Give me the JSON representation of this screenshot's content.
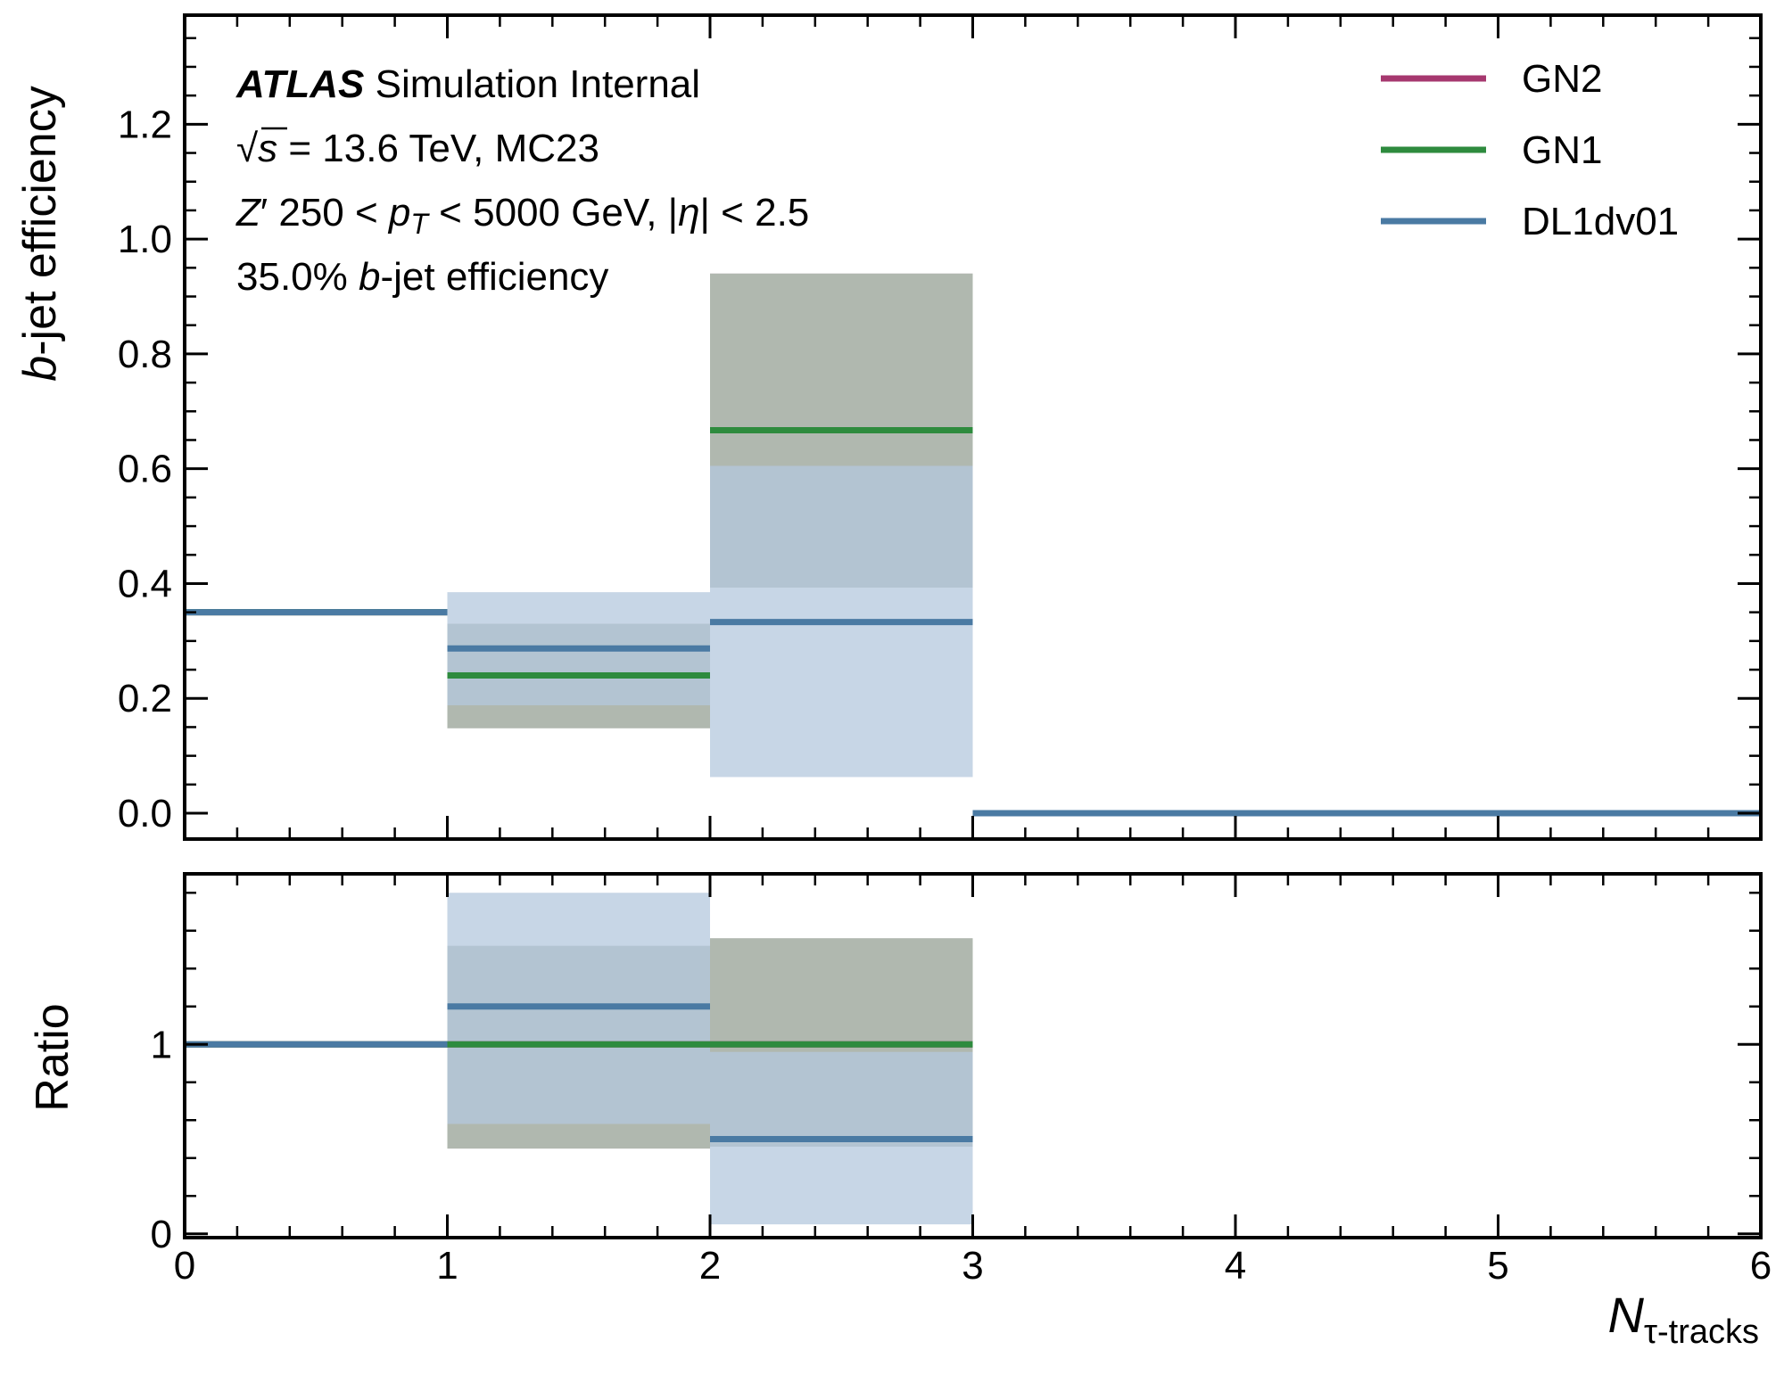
{
  "chart_data": {
    "type": "step",
    "x_edges": [
      0,
      1,
      2,
      3,
      4,
      5,
      6
    ],
    "xlim": [
      0,
      6
    ],
    "xticks": [
      "0",
      "1",
      "2",
      "3",
      "4",
      "5",
      "6"
    ],
    "xlabel_main": "N",
    "xlabel_sub": "τ-tracks",
    "top": {
      "ylabel_italic": "b",
      "ylabel_rest": "-jet efficiency",
      "ylim": [
        -0.045,
        1.39
      ],
      "yticks": [
        "0.0",
        "0.2",
        "0.4",
        "0.6",
        "0.8",
        "1.0",
        "1.2"
      ],
      "series": [
        {
          "name": "GN2",
          "color": "#a6386f",
          "values": [
            0.35,
            0.24,
            0.667,
            0,
            0,
            0
          ],
          "band_low": [
            0.35,
            0.148,
            0.393,
            0,
            0,
            0
          ],
          "band_high": [
            0.35,
            0.33,
            0.94,
            0,
            0,
            0
          ]
        },
        {
          "name": "GN1",
          "color": "#2e8b3e",
          "values": [
            0.35,
            0.24,
            0.667,
            0,
            0,
            0
          ],
          "band_low": [
            0.35,
            0.148,
            0.393,
            0,
            0,
            0
          ],
          "band_high": [
            0.35,
            0.33,
            0.94,
            0,
            0,
            0
          ]
        },
        {
          "name": "DL1dv01",
          "color": "#4a7aa3",
          "values": [
            0.35,
            0.287,
            0.333,
            0,
            0,
            0
          ],
          "band_low": [
            0.35,
            0.188,
            0.063,
            0,
            0,
            0
          ],
          "band_high": [
            0.35,
            0.385,
            0.605,
            0,
            0,
            0
          ]
        }
      ]
    },
    "bottom": {
      "ylabel": "Ratio",
      "ylim": [
        -0.02,
        1.9
      ],
      "yticks": [
        "0",
        "1"
      ],
      "series": [
        {
          "name": "GN2",
          "values": [
            1.0,
            1.0,
            1.0,
            null,
            null,
            null
          ],
          "band_low": [
            1.0,
            0.45,
            0.46,
            null,
            null,
            null
          ],
          "band_high": [
            1.0,
            1.52,
            1.56,
            null,
            null,
            null
          ]
        },
        {
          "name": "GN1",
          "values": [
            1.0,
            1.0,
            1.0,
            null,
            null,
            null
          ],
          "band_low": [
            1.0,
            0.45,
            0.46,
            null,
            null,
            null
          ],
          "band_high": [
            1.0,
            1.52,
            1.56,
            null,
            null,
            null
          ]
        },
        {
          "name": "DL1dv01",
          "values": [
            1.0,
            1.2,
            0.5,
            null,
            null,
            null
          ],
          "band_low": [
            1.0,
            0.58,
            0.05,
            null,
            null,
            null
          ],
          "band_high": [
            1.0,
            1.8,
            0.96,
            null,
            null,
            null
          ]
        }
      ]
    },
    "legend_position": "top-right",
    "annotations": {
      "line1_bold": "ATLAS",
      "line1_rest": " Simulation Internal",
      "line2_sqrt": "√",
      "line2_s": "s",
      "line2_rest": " = 13.6 TeV, MC23",
      "line3_Z": "Z",
      "line3_prime": "′",
      "line3_a": " 250 < ",
      "line3_p": "p",
      "line3_T": "T",
      "line3_b": " < 5000 GeV, |",
      "line3_eta": "η",
      "line3_c": "| < 2.5",
      "line4_a": "35.0% ",
      "line4_b": "b",
      "line4_c": "-jet efficiency"
    }
  }
}
